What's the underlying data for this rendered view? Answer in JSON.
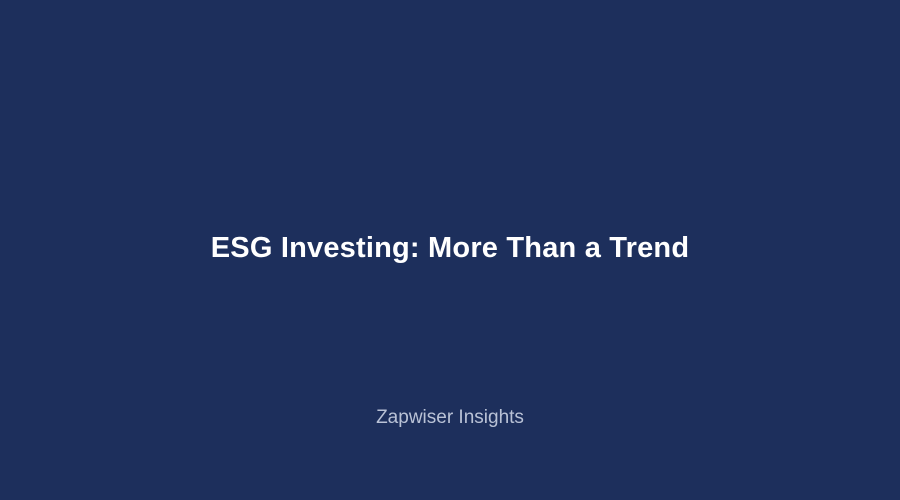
{
  "slide": {
    "title": "ESG Investing: More Than a Trend",
    "brand": "Zapwiser Insights"
  },
  "colors": {
    "background": "#1d2f5c",
    "title_text": "#ffffff",
    "brand_text": "#b9c2d6"
  }
}
